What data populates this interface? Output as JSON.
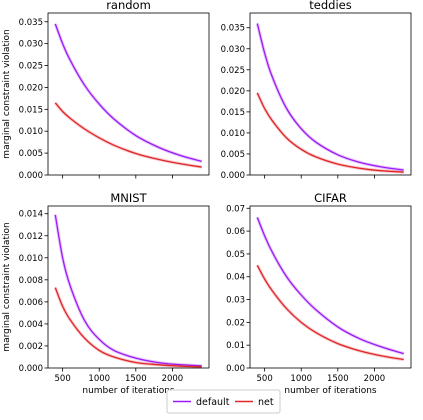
{
  "legend": {
    "placement": "bottom-center",
    "entries": [
      {
        "name": "default",
        "color": "#9b1bf5"
      },
      {
        "name": "net",
        "color": "#e0262a"
      }
    ]
  },
  "chart_data": [
    {
      "type": "line",
      "title": "random",
      "xlabel": "",
      "ylabel": "marginal constraint violation",
      "xlim": [
        300,
        2500
      ],
      "ylim": [
        0,
        0.037
      ],
      "xticks": [
        500,
        1000,
        1500,
        2000
      ],
      "xtick_labels_shown": false,
      "yticks": [
        0.0,
        0.005,
        0.01,
        0.015,
        0.02,
        0.025,
        0.03,
        0.035
      ],
      "ytick_labels": [
        "0.000",
        "0.005",
        "0.010",
        "0.015",
        "0.020",
        "0.025",
        "0.030",
        "0.035"
      ],
      "x": [
        400,
        500,
        600,
        800,
        1000,
        1200,
        1500,
        1800,
        2100,
        2400
      ],
      "series": [
        {
          "name": "default",
          "values": [
            0.0345,
            0.03,
            0.0263,
            0.0205,
            0.0162,
            0.0128,
            0.009,
            0.0064,
            0.0045,
            0.0031
          ]
        },
        {
          "name": "net",
          "values": [
            0.0165,
            0.0145,
            0.013,
            0.0105,
            0.0085,
            0.0068,
            0.0049,
            0.0036,
            0.0026,
            0.0018
          ]
        }
      ]
    },
    {
      "type": "line",
      "title": "teddies",
      "xlabel": "",
      "ylabel": "",
      "xlim": [
        300,
        2500
      ],
      "ylim": [
        0,
        0.0385
      ],
      "xticks": [
        500,
        1000,
        1500,
        2000
      ],
      "xtick_labels_shown": false,
      "yticks": [
        0.0,
        0.005,
        0.01,
        0.015,
        0.02,
        0.025,
        0.03,
        0.035
      ],
      "ytick_labels": [
        "0.000",
        "0.005",
        "0.010",
        "0.015",
        "0.020",
        "0.025",
        "0.030",
        "0.035"
      ],
      "x": [
        400,
        500,
        600,
        800,
        1000,
        1200,
        1500,
        1800,
        2100,
        2400
      ],
      "series": [
        {
          "name": "default",
          "values": [
            0.036,
            0.029,
            0.0235,
            0.0158,
            0.011,
            0.0078,
            0.0048,
            0.003,
            0.0019,
            0.0012
          ]
        },
        {
          "name": "net",
          "values": [
            0.0195,
            0.0158,
            0.013,
            0.0088,
            0.0061,
            0.0043,
            0.0026,
            0.0016,
            0.001,
            0.0007
          ]
        }
      ]
    },
    {
      "type": "line",
      "title": "MNIST",
      "xlabel": "number of iterations",
      "ylabel": "marginal constraint violation",
      "xlim": [
        300,
        2500
      ],
      "ylim": [
        0,
        0.0147
      ],
      "xticks": [
        500,
        1000,
        1500,
        2000
      ],
      "xtick_labels": [
        "500",
        "1000",
        "1500",
        "2000"
      ],
      "yticks": [
        0.0,
        0.002,
        0.004,
        0.006,
        0.008,
        0.01,
        0.012,
        0.014
      ],
      "ytick_labels": [
        "0.000",
        "0.002",
        "0.004",
        "0.006",
        "0.008",
        "0.010",
        "0.012",
        "0.014"
      ],
      "x": [
        400,
        500,
        600,
        800,
        1000,
        1200,
        1500,
        1800,
        2100,
        2400
      ],
      "series": [
        {
          "name": "default",
          "values": [
            0.0139,
            0.01,
            0.0075,
            0.0043,
            0.0026,
            0.0016,
            0.0009,
            0.0005,
            0.0003,
            0.0002
          ]
        },
        {
          "name": "net",
          "values": [
            0.0073,
            0.0056,
            0.0044,
            0.0027,
            0.0016,
            0.001,
            0.0005,
            0.0003,
            0.00017,
            0.0001
          ]
        }
      ]
    },
    {
      "type": "line",
      "title": "CIFAR",
      "xlabel": "number of iterations",
      "ylabel": "",
      "xlim": [
        300,
        2500
      ],
      "ylim": [
        0,
        0.071
      ],
      "xticks": [
        500,
        1000,
        1500,
        2000
      ],
      "xtick_labels": [
        "500",
        "1000",
        "1500",
        "2000"
      ],
      "yticks": [
        0.0,
        0.01,
        0.02,
        0.03,
        0.04,
        0.05,
        0.06,
        0.07
      ],
      "ytick_labels": [
        "0.00",
        "0.01",
        "0.02",
        "0.03",
        "0.04",
        "0.05",
        "0.06",
        "0.07"
      ],
      "x": [
        400,
        500,
        600,
        800,
        1000,
        1200,
        1500,
        1800,
        2100,
        2400
      ],
      "series": [
        {
          "name": "default",
          "values": [
            0.066,
            0.058,
            0.051,
            0.04,
            0.032,
            0.0255,
            0.018,
            0.0128,
            0.0092,
            0.0063
          ]
        },
        {
          "name": "net",
          "values": [
            0.045,
            0.039,
            0.034,
            0.026,
            0.02,
            0.0155,
            0.0107,
            0.0075,
            0.0053,
            0.0037
          ]
        }
      ]
    }
  ]
}
